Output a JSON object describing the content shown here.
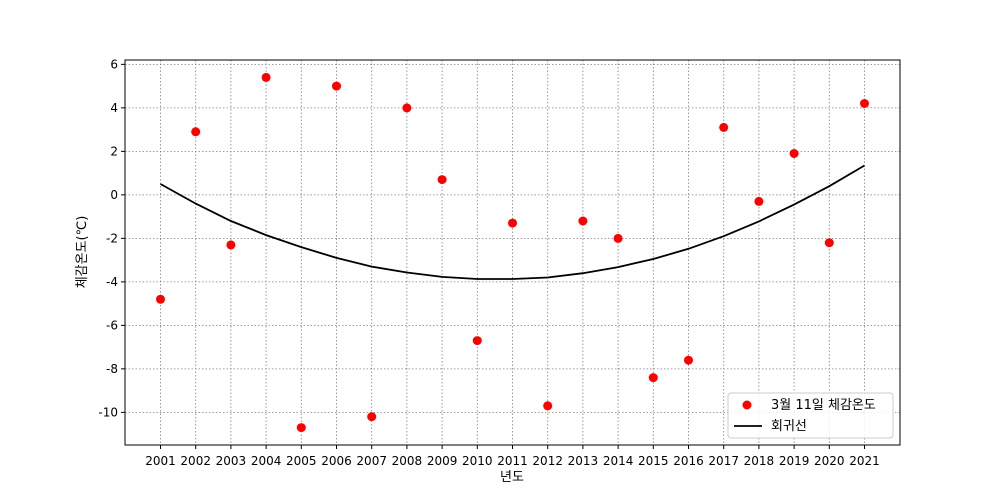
{
  "chart_data": {
    "type": "scatter",
    "title": "",
    "xlabel": "년도",
    "ylabel": "체감온도(℃)",
    "categories": [
      "2001",
      "2002",
      "2003",
      "2004",
      "2005",
      "2006",
      "2007",
      "2008",
      "2009",
      "2010",
      "2011",
      "2012",
      "2013",
      "2014",
      "2015",
      "2016",
      "2017",
      "2018",
      "2019",
      "2020",
      "2021"
    ],
    "yticks": [
      -10,
      -8,
      -6,
      -4,
      -2,
      0,
      2,
      4,
      6
    ],
    "ylim": [
      -11.5,
      6.2
    ],
    "grid": true,
    "legend_position": "lower-right",
    "series": [
      {
        "name": "3월 11일 체감온도",
        "kind": "scatter",
        "color": "#ff0000",
        "values": [
          -4.8,
          2.9,
          -2.3,
          5.4,
          -10.7,
          5.0,
          -10.2,
          4.0,
          0.7,
          -6.7,
          -1.3,
          -9.7,
          -1.2,
          -2.0,
          -8.4,
          -7.6,
          3.1,
          -0.3,
          1.9,
          -2.2,
          4.2
        ]
      },
      {
        "name": "회귀선",
        "kind": "line",
        "color": "#000000",
        "values": [
          0.5,
          -0.4,
          -1.2,
          -1.85,
          -2.4,
          -2.9,
          -3.3,
          -3.57,
          -3.77,
          -3.87,
          -3.87,
          -3.8,
          -3.6,
          -3.32,
          -2.95,
          -2.48,
          -1.9,
          -1.22,
          -0.45,
          0.4,
          1.35
        ]
      }
    ]
  }
}
